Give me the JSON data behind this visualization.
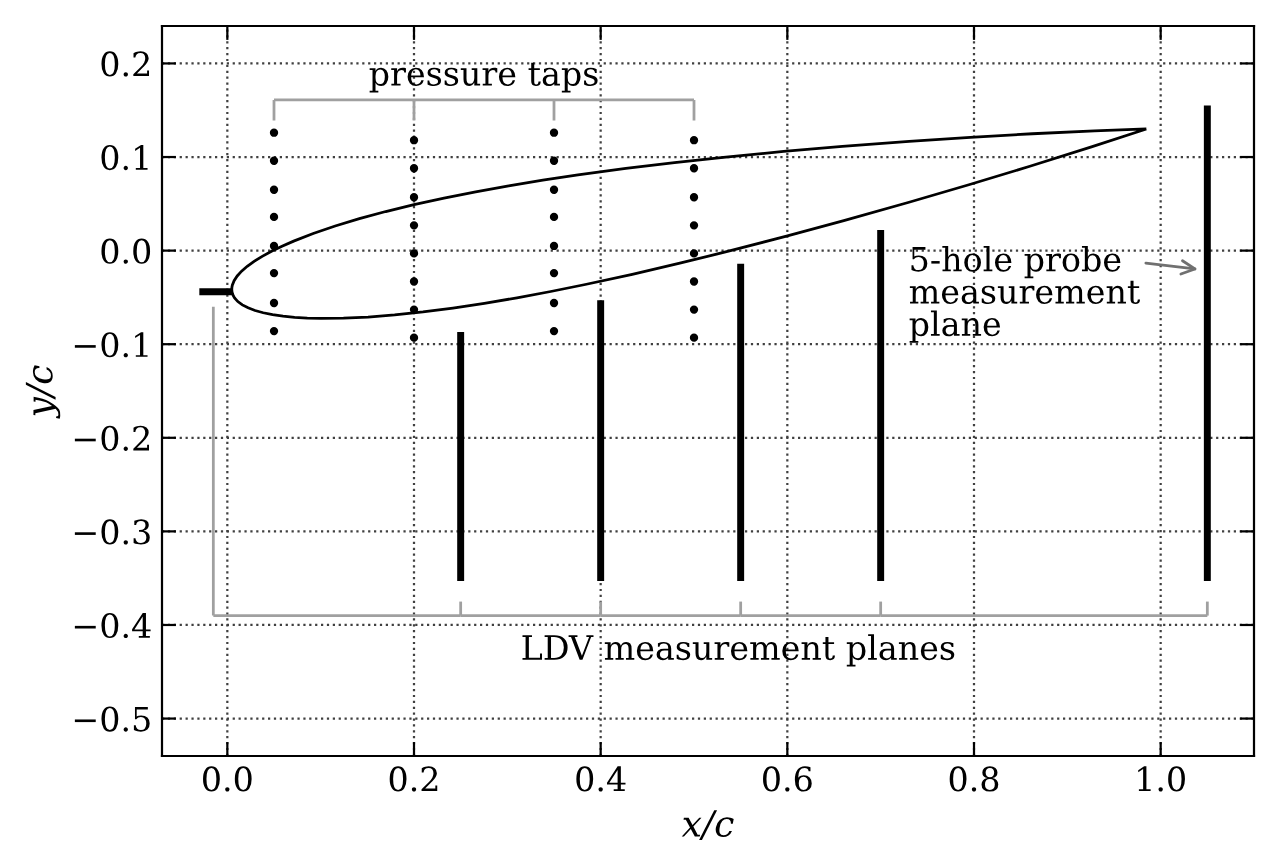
{
  "chart_data": {
    "type": "line",
    "xlabel": "x/c",
    "ylabel": "y/c",
    "xlim": [
      -0.07,
      1.1
    ],
    "ylim": [
      -0.54,
      0.24
    ],
    "xticks": [
      {
        "value": 0,
        "label": "0.0"
      },
      0.2,
      0.4,
      0.6,
      0.8,
      {
        "value": 1,
        "label": "1.0"
      }
    ],
    "yticks": [
      {
        "value": -0.5,
        "label": "−0.5"
      },
      {
        "value": -0.4,
        "label": "−0.4"
      },
      {
        "value": -0.3,
        "label": "−0.3"
      },
      {
        "value": -0.2,
        "label": "−0.2"
      },
      {
        "value": -0.1,
        "label": "−0.1"
      },
      {
        "value": 0,
        "label": "0.0"
      },
      0.1,
      0.2
    ],
    "grid": true,
    "legend": false,
    "series": [
      {
        "color": "#000000",
        "x": [
          -0.03,
          0.005
        ],
        "values": [
          -0.044,
          -0.044
        ]
      },
      {
        "type": "scatter",
        "color": "#000000",
        "marker": "circle",
        "x": [
          0.05,
          0.05,
          0.05,
          0.05,
          0.05,
          0.05,
          0.05,
          0.05,
          0.2,
          0.2,
          0.2,
          0.2,
          0.2,
          0.2,
          0.2,
          0.2,
          0.35,
          0.35,
          0.35,
          0.35,
          0.35,
          0.35,
          0.35,
          0.35,
          0.5,
          0.5,
          0.5,
          0.5,
          0.5,
          0.5,
          0.5,
          0.5
        ],
        "values": [
          0.126,
          0.096,
          0.065,
          0.036,
          0.005,
          -0.024,
          -0.056,
          -0.086,
          0.118,
          0.088,
          0.057,
          0.027,
          -0.003,
          -0.033,
          -0.063,
          -0.093,
          0.126,
          0.096,
          0.065,
          0.036,
          0.005,
          -0.024,
          -0.056,
          -0.086,
          0.118,
          0.088,
          0.057,
          0.027,
          -0.003,
          -0.033,
          -0.063,
          -0.093
        ]
      },
      {
        "color": "#000000",
        "x": [
          0.25,
          0.25
        ],
        "values": [
          -0.353,
          -0.087
        ]
      },
      {
        "color": "#000000",
        "x": [
          0.4,
          0.4
        ],
        "values": [
          -0.353,
          -0.053
        ]
      },
      {
        "color": "#000000",
        "x": [
          0.55,
          0.55
        ],
        "values": [
          -0.353,
          -0.014
        ]
      },
      {
        "color": "#000000",
        "x": [
          0.7,
          0.7
        ],
        "values": [
          -0.353,
          0.022
        ]
      },
      {
        "color": "#000000",
        "x": [
          1.05,
          1.05
        ],
        "values": [
          -0.353,
          0.155
        ]
      }
    ],
    "annotations": [
      "pressure taps",
      "LDV measurement planes",
      {
        "text": "5-hole probe\nmeasurement\nplane",
        "x": 1.05,
        "y": -0.02
      }
    ]
  }
}
